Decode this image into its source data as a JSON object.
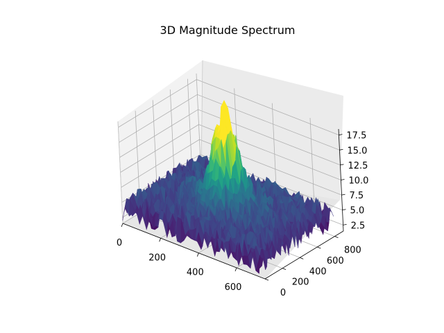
{
  "chart_data": {
    "type": "surface3d",
    "title": "3D Magnitude Spectrum",
    "xlabel": "",
    "ylabel": "",
    "zlabel": "",
    "colormap": "viridis",
    "xlim": [
      0,
      750
    ],
    "ylim": [
      0,
      900
    ],
    "zlim": [
      1.5,
      18.5
    ],
    "x_ticks": [
      0,
      200,
      400,
      600
    ],
    "x_tick_labels": [
      "0",
      "200",
      "400",
      "600"
    ],
    "y_ticks": [
      0,
      200,
      400,
      600,
      800
    ],
    "y_tick_labels": [
      "0",
      "200",
      "400",
      "600",
      "800"
    ],
    "z_ticks": [
      2.5,
      5.0,
      7.5,
      10.0,
      12.5,
      15.0,
      17.5
    ],
    "z_tick_labels": [
      "2.5",
      "5.0",
      "7.5",
      "10.0",
      "12.5",
      "15.0",
      "17.5"
    ],
    "surface": {
      "x_extent": [
        0,
        720
      ],
      "y_extent": [
        0,
        860
      ],
      "baseline_z": 5.0,
      "min_z": 2.0,
      "noise_amplitude": 2.0,
      "center_peak": {
        "x": 360,
        "y": 430,
        "z": 17.5
      },
      "secondary_peaks": [
        {
          "x": 330,
          "y": 430,
          "z": 12.5
        },
        {
          "x": 390,
          "y": 430,
          "z": 12.5
        }
      ]
    },
    "grid": true,
    "legend": "none"
  }
}
